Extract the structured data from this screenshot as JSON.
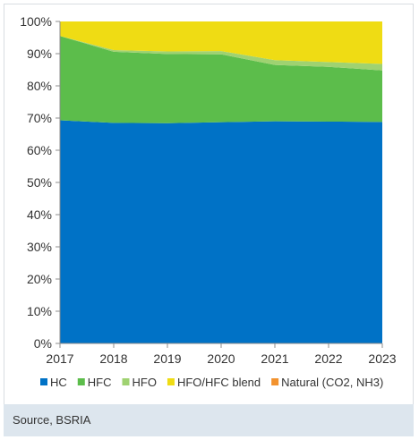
{
  "chart_data": {
    "type": "area",
    "stacked": true,
    "x": [
      2017,
      2018,
      2019,
      2020,
      2021,
      2022,
      2023
    ],
    "series": [
      {
        "name": "HC",
        "color": "#0072c6",
        "values": [
          69.3,
          68.5,
          68.4,
          68.7,
          69.0,
          68.9,
          68.8
        ]
      },
      {
        "name": "HFC",
        "color": "#5cbd4b",
        "values": [
          26.2,
          22.1,
          21.5,
          21.1,
          17.5,
          17.0,
          16.0
        ]
      },
      {
        "name": "HFO",
        "color": "#9fd271",
        "values": [
          0.0,
          0.5,
          0.8,
          1.0,
          1.5,
          1.5,
          2.0
        ]
      },
      {
        "name": "HFO/HFC blend",
        "color": "#efdc14",
        "values": [
          4.5,
          8.9,
          9.3,
          9.2,
          12.0,
          12.6,
          13.2
        ]
      },
      {
        "name": "Natural (CO2, NH3)",
        "color": "#f2922e",
        "values": [
          0.0,
          0.0,
          0.0,
          0.0,
          0.0,
          0.0,
          0.0
        ]
      }
    ],
    "yticks": [
      "0%",
      "10%",
      "20%",
      "30%",
      "40%",
      "50%",
      "60%",
      "70%",
      "80%",
      "90%",
      "100%"
    ],
    "xticks": [
      "2017",
      "2018",
      "2019",
      "2020",
      "2021",
      "2022",
      "2023"
    ],
    "ylim": [
      0,
      100
    ],
    "grid": false,
    "legend_position": "bottom"
  },
  "caption": "Source, BSRIA"
}
